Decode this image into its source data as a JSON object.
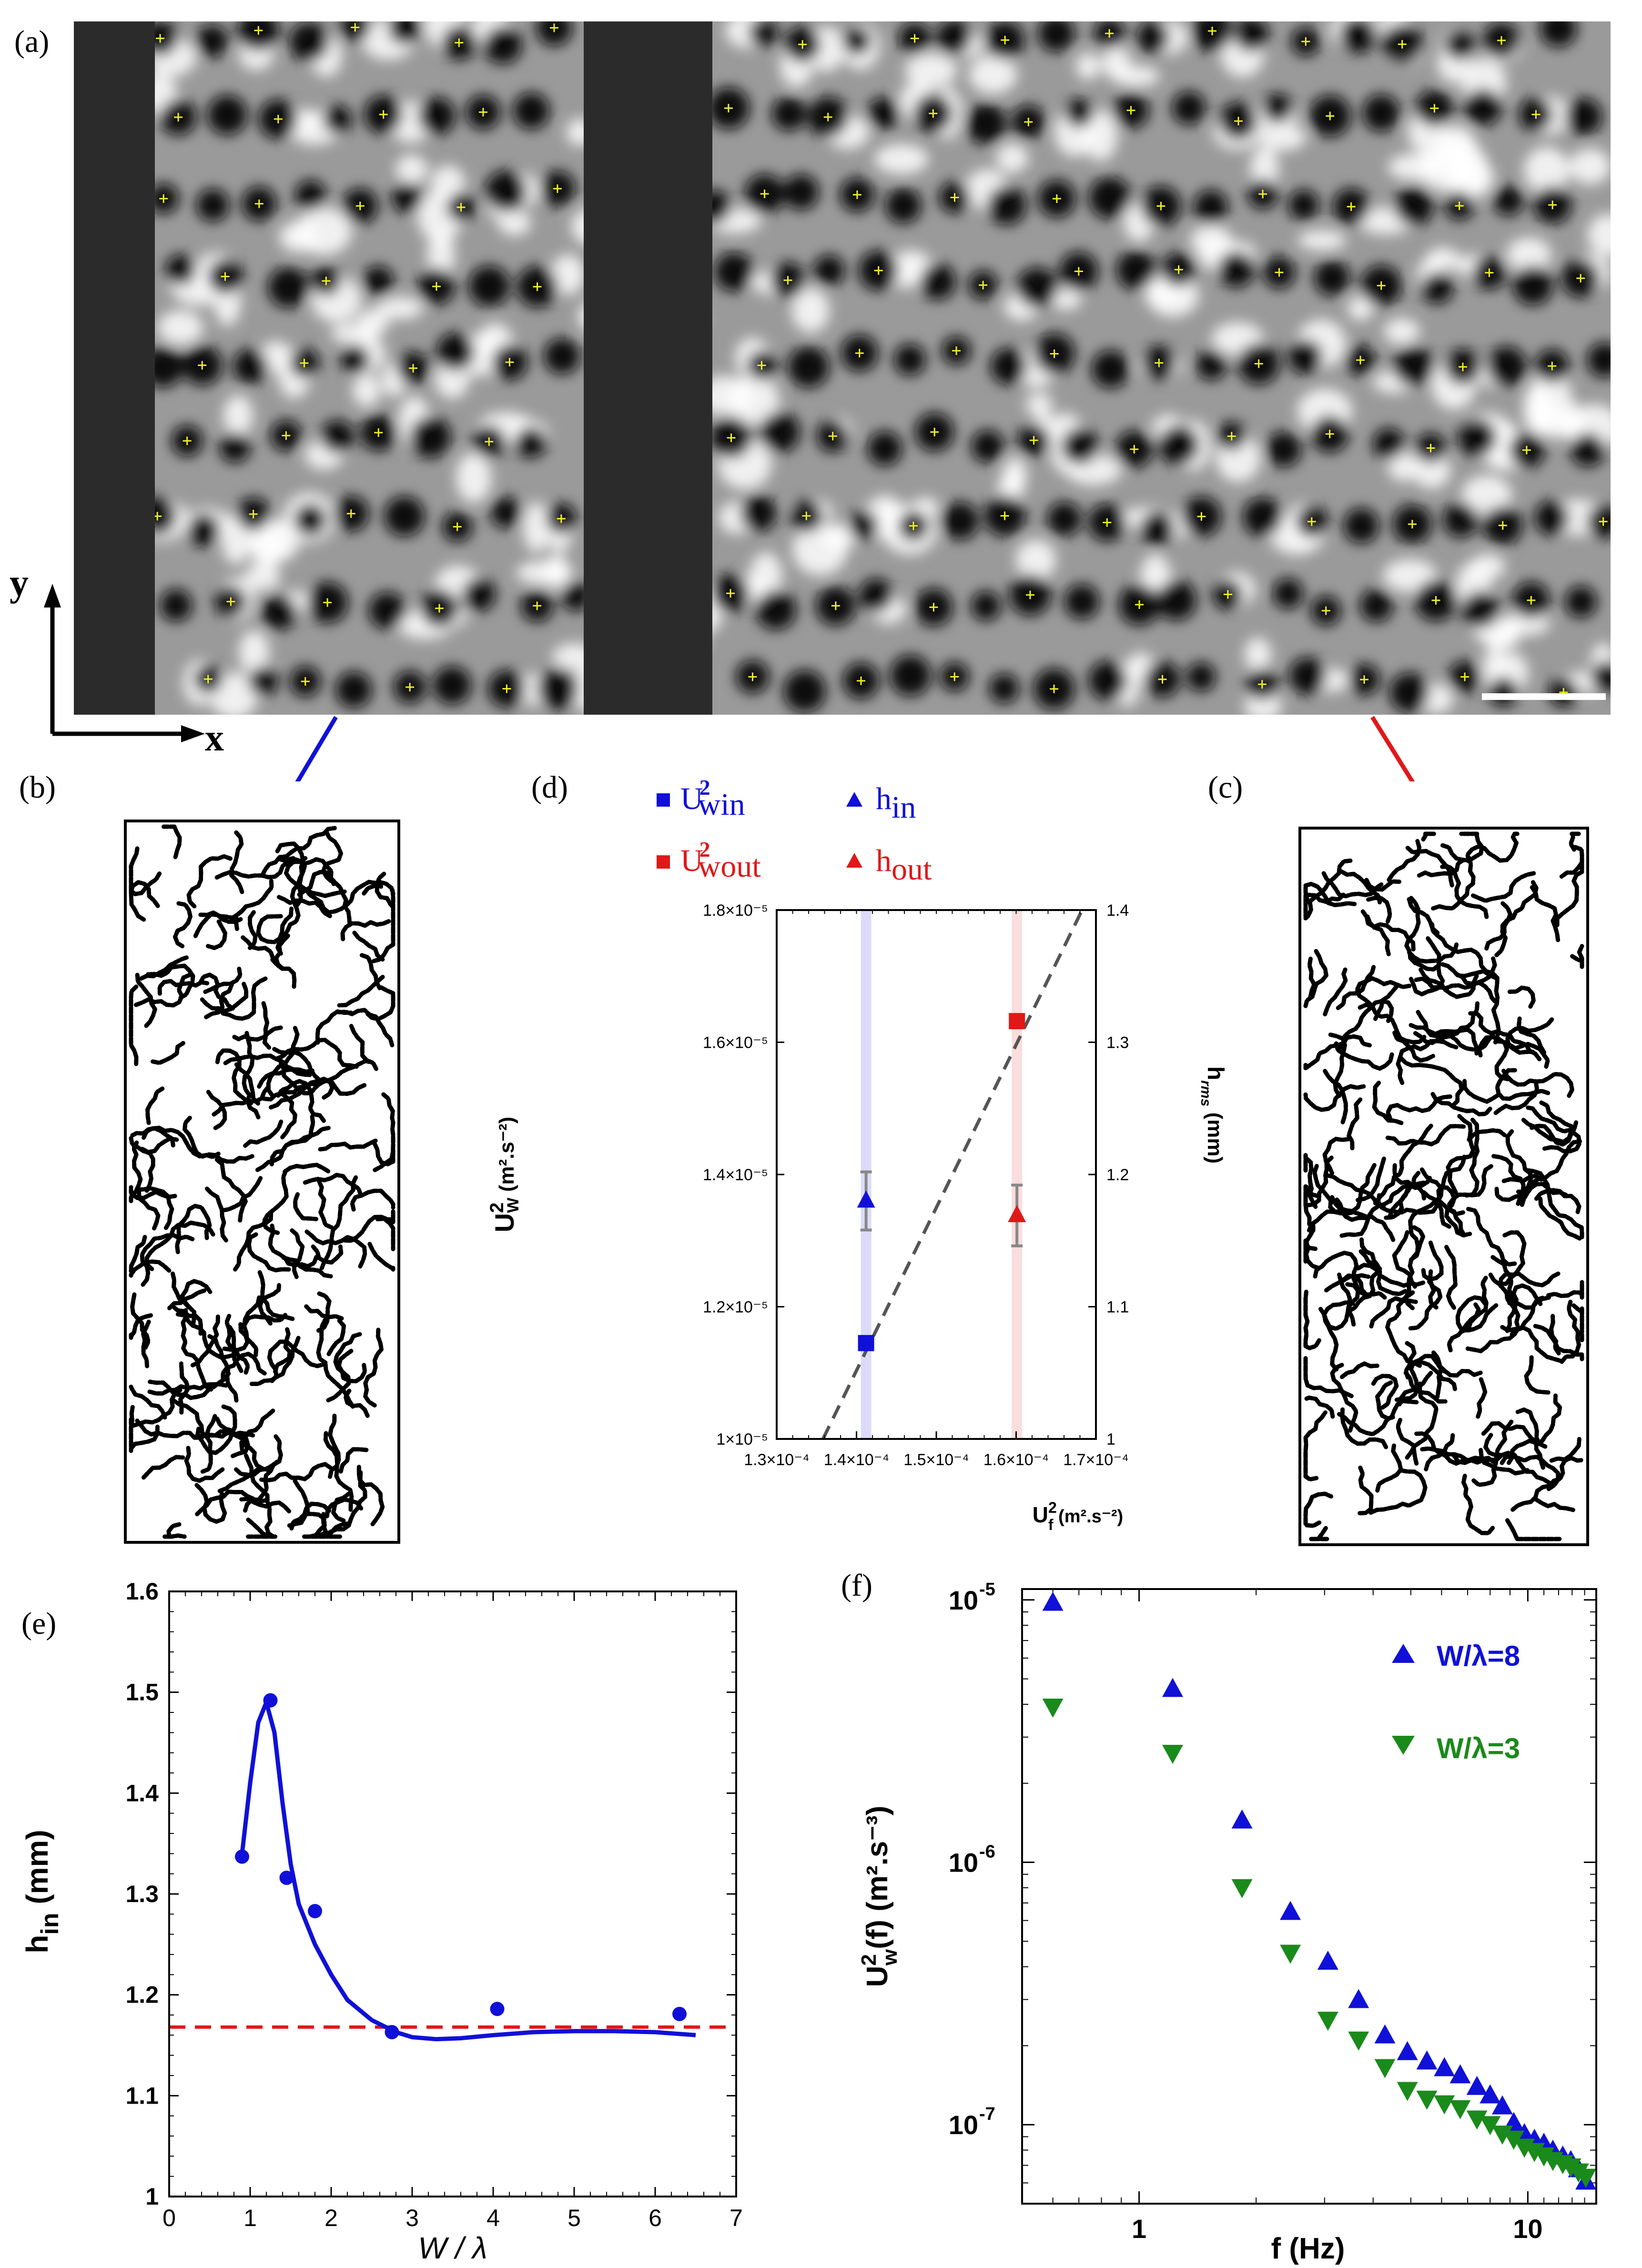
{
  "panels": {
    "a": "(a)",
    "b": "(b)",
    "c": "(c)",
    "d": "(d)",
    "e": "(e)",
    "f": "(f)"
  },
  "axes_labels": {
    "x": "x",
    "y": "y"
  },
  "colors": {
    "blue": "#1010d8",
    "red": "#e01818",
    "green": "#1a8a1a",
    "gray": "#555555"
  },
  "chart_data": [
    {
      "id": "d",
      "type": "scatter",
      "xlabel": "U",
      "xlabel_sup": "2",
      "xlabel_sub": "f",
      "xlabel_unit": " (m².s⁻²)",
      "ylabel": "U",
      "ylabel_sup": "2",
      "ylabel_sub": "W",
      "ylabel_unit": " (m².s⁻²)",
      "y2label": "h",
      "y2label_sub": "rms",
      "y2label_unit": " (mm)",
      "xlim": [
        0.00013,
        0.00017
      ],
      "ylim": [
        1e-05,
        1.8e-05
      ],
      "y2lim": [
        1.0,
        1.4
      ],
      "xticks": [
        {
          "v": 0.00013,
          "l": "1.3×10⁻⁴"
        },
        {
          "v": 0.00014,
          "l": "1.4×10⁻⁴"
        },
        {
          "v": 0.00015,
          "l": "1.5×10⁻⁴"
        },
        {
          "v": 0.00016,
          "l": "1.6×10⁻⁴"
        },
        {
          "v": 0.00017,
          "l": "1.7×10⁻⁴"
        }
      ],
      "yticks": [
        {
          "v": 1e-05,
          "l": "1×10⁻⁵"
        },
        {
          "v": 1.2e-05,
          "l": "1.2×10⁻⁵"
        },
        {
          "v": 1.4e-05,
          "l": "1.4×10⁻⁵"
        },
        {
          "v": 1.6e-05,
          "l": "1.6×10⁻⁵"
        },
        {
          "v": 1.8e-05,
          "l": "1.8×10⁻⁵"
        }
      ],
      "y2ticks": [
        {
          "v": 1.0,
          "l": "1"
        },
        {
          "v": 1.1,
          "l": "1.1"
        },
        {
          "v": 1.2,
          "l": "1.2"
        },
        {
          "v": 1.3,
          "l": "1.3"
        },
        {
          "v": 1.4,
          "l": "1.4"
        }
      ],
      "series": [
        {
          "name": "U²win",
          "label": "U",
          "sup": "2",
          "sub": "win",
          "marker": "square",
          "color": "#1010d8",
          "axis": "left",
          "x": [
            0.0001412
          ],
          "y": [
            1.145e-05
          ]
        },
        {
          "name": "U²wout",
          "label": "U",
          "sup": "2",
          "sub": "wout",
          "marker": "square",
          "color": "#e01818",
          "axis": "left",
          "x": [
            0.0001601
          ],
          "y": [
            1.632e-05
          ]
        },
        {
          "name": "h_in",
          "label": "h",
          "sub": "in",
          "marker": "triangle-up",
          "color": "#1010d8",
          "axis": "right",
          "x": [
            0.0001412
          ],
          "y": [
            1.18
          ],
          "err": [
            0.022
          ]
        },
        {
          "name": "h_out",
          "label": "h",
          "sub": "out",
          "marker": "triangle-up",
          "color": "#e01818",
          "axis": "right",
          "x": [
            0.0001601
          ],
          "y": [
            1.169
          ],
          "err": [
            0.023
          ]
        }
      ],
      "fit_line": {
        "x": [
          0.0001358,
          0.00016827
        ],
        "y": [
          1e-05,
          1.8e-05
        ],
        "style": "dashed"
      },
      "bands": [
        {
          "x": 0.0001412,
          "color": "#1010d8"
        },
        {
          "x": 0.0001601,
          "color": "#e01818"
        }
      ]
    },
    {
      "id": "e",
      "type": "scatter",
      "xlabel": "W / λ",
      "ylabel": "h",
      "ylabel_sub": "in",
      "ylabel_unit": " (mm)",
      "xlim": [
        0,
        7
      ],
      "ylim": [
        1.0,
        1.6
      ],
      "xticks": [
        0,
        1,
        2,
        3,
        4,
        5,
        6,
        7
      ],
      "yticks": [
        1.0,
        1.1,
        1.2,
        1.3,
        1.4,
        1.5,
        1.6
      ],
      "ytick_labels": [
        "1",
        "1.1",
        "1.2",
        "1.3",
        "1.4",
        "1.5",
        "1.6"
      ],
      "points": {
        "x": [
          0.9,
          1.25,
          1.45,
          1.8,
          2.75,
          4.05,
          6.3
        ],
        "y": [
          1.337,
          1.492,
          1.316,
          1.283,
          1.163,
          1.186,
          1.181
        ]
      },
      "fit_curve": {
        "x": [
          0.9,
          1.0,
          1.1,
          1.2,
          1.3,
          1.4,
          1.5,
          1.6,
          1.8,
          2.0,
          2.2,
          2.5,
          2.8,
          3.0,
          3.3,
          3.6,
          4.0,
          4.5,
          5.0,
          5.5,
          6.0,
          6.5
        ],
        "y": [
          1.34,
          1.41,
          1.47,
          1.49,
          1.46,
          1.39,
          1.33,
          1.29,
          1.25,
          1.22,
          1.195,
          1.175,
          1.163,
          1.158,
          1.156,
          1.157,
          1.16,
          1.163,
          1.164,
          1.164,
          1.163,
          1.16
        ]
      },
      "reference_line": {
        "y": 1.168,
        "color": "#e01818",
        "style": "dashed"
      }
    },
    {
      "id": "f",
      "type": "scatter",
      "scale": "log-log",
      "xlabel": "f (Hz)",
      "ylabel": "U",
      "ylabel_sup": "2",
      "ylabel_sub": "w",
      "ylabel_rest": "(f) (m².s⁻³)",
      "xlim": [
        0.5,
        15
      ],
      "ylim": [
        5e-08,
        1.1e-05
      ],
      "xticks": [
        {
          "v": 1,
          "l": "1"
        },
        {
          "v": 10,
          "l": "10"
        }
      ],
      "yticks": [
        {
          "v": 1e-07,
          "l": "10",
          "e": "-7"
        },
        {
          "v": 1e-06,
          "l": "10",
          "e": "-6"
        },
        {
          "v": 1e-05,
          "l": "10",
          "e": "-5"
        }
      ],
      "series": [
        {
          "name": "W/λ=8",
          "marker": "triangle-up",
          "color": "#1010d8",
          "x": [
            0.6,
            1.22,
            1.84,
            2.45,
            3.06,
            3.67,
            4.29,
            4.9,
            5.5,
            6.1,
            6.7,
            7.4,
            8.0,
            8.6,
            9.2,
            9.8,
            10.4,
            11.0,
            11.6,
            12.3,
            12.9,
            13.5,
            14.1
          ],
          "y": [
            9.8e-06,
            4.6e-06,
            1.45e-06,
            6.5e-07,
            4.2e-07,
            3e-07,
            2.2e-07,
            1.9e-07,
            1.75e-07,
            1.65e-07,
            1.55e-07,
            1.4e-07,
            1.3e-07,
            1.18e-07,
            1.02e-07,
            9.25e-08,
            8.8e-08,
            8.5e-08,
            8e-08,
            7.6e-08,
            7.3e-08,
            6.8e-08,
            6.1e-08
          ]
        },
        {
          "name": "W/λ=3",
          "marker": "triangle-down",
          "color": "#1a8a1a",
          "x": [
            0.6,
            1.22,
            1.84,
            2.45,
            3.06,
            3.67,
            4.29,
            4.9,
            5.5,
            6.1,
            6.7,
            7.4,
            8.0,
            8.6,
            9.2,
            9.8,
            10.4,
            11.0,
            11.6,
            12.3,
            12.9,
            13.5,
            14.1
          ],
          "y": [
            3.9e-06,
            2.6e-06,
            8e-07,
            4.5e-07,
            2.5e-07,
            2.1e-07,
            1.65e-07,
            1.35e-07,
            1.25e-07,
            1.2e-07,
            1.15e-07,
            1.05e-07,
            1e-07,
            9.2e-08,
            8.8e-08,
            8.2e-08,
            7.9e-08,
            7.6e-08,
            7.3e-08,
            7.1e-08,
            6.9e-08,
            6.6e-08,
            6.3e-08
          ]
        }
      ]
    }
  ]
}
